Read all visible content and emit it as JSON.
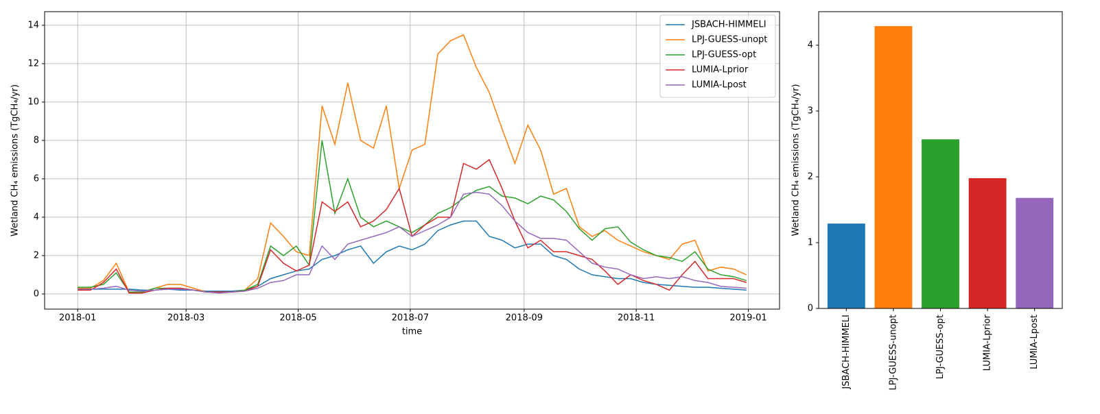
{
  "chart_data": [
    {
      "type": "line",
      "xlabel": "time",
      "ylabel": "Wetland CH₄ emissions (TgCH₄/yr)",
      "x": [
        0,
        7,
        14,
        21,
        28,
        35,
        42,
        49,
        56,
        63,
        70,
        77,
        84,
        91,
        98,
        105,
        112,
        119,
        126,
        133,
        140,
        147,
        154,
        161,
        168,
        175,
        182,
        189,
        196,
        203,
        210,
        217,
        224,
        231,
        238,
        245,
        252,
        259,
        266,
        273,
        280,
        287,
        294,
        301,
        308,
        315,
        322,
        329,
        336,
        343,
        350,
        357,
        364
      ],
      "xlim": [
        -18,
        382
      ],
      "xticks": [
        {
          "value": 0,
          "label": "2018-01"
        },
        {
          "value": 59,
          "label": "2018-03"
        },
        {
          "value": 120,
          "label": "2018-05"
        },
        {
          "value": 181,
          "label": "2018-07"
        },
        {
          "value": 243,
          "label": "2018-09"
        },
        {
          "value": 304,
          "label": "2018-11"
        },
        {
          "value": 365,
          "label": "2019-01"
        }
      ],
      "ylim": [
        -0.79,
        14.71
      ],
      "yticks": [
        0,
        2,
        4,
        6,
        8,
        10,
        12,
        14
      ],
      "grid": true,
      "legend": "upper right",
      "series": [
        {
          "name": "JSBACH-HIMMELI",
          "color": "#1f77b4",
          "values": [
            0.3,
            0.25,
            0.25,
            0.25,
            0.25,
            0.2,
            0.2,
            0.25,
            0.2,
            0.2,
            0.15,
            0.15,
            0.15,
            0.2,
            0.4,
            0.8,
            1.0,
            1.2,
            1.3,
            1.8,
            2.0,
            2.3,
            2.5,
            1.6,
            2.2,
            2.5,
            2.3,
            2.6,
            3.3,
            3.6,
            3.8,
            3.8,
            3.0,
            2.8,
            2.4,
            2.6,
            2.6,
            2.0,
            1.8,
            1.3,
            1.0,
            0.9,
            0.8,
            0.8,
            0.6,
            0.5,
            0.45,
            0.4,
            0.35,
            0.35,
            0.3,
            0.25,
            0.2
          ]
        },
        {
          "name": "LPJ-GUESS-unopt",
          "color": "#ff7f0e",
          "values": [
            0.3,
            0.3,
            0.7,
            1.6,
            0.1,
            0.1,
            0.3,
            0.5,
            0.5,
            0.3,
            0.1,
            0.1,
            0.1,
            0.2,
            0.8,
            3.7,
            3.0,
            2.2,
            2.0,
            9.8,
            7.8,
            11.0,
            8.0,
            7.6,
            9.8,
            5.5,
            7.5,
            7.8,
            12.5,
            13.2,
            13.5,
            11.8,
            10.5,
            8.6,
            6.8,
            8.8,
            7.5,
            5.2,
            5.5,
            3.5,
            3.0,
            3.3,
            2.8,
            2.5,
            2.2,
            2.0,
            1.8,
            2.6,
            2.8,
            1.2,
            1.4,
            1.3,
            1.0
          ]
        },
        {
          "name": "LPJ-GUESS-opt",
          "color": "#2ca02c",
          "values": [
            0.35,
            0.35,
            0.5,
            1.1,
            0.1,
            0.1,
            0.3,
            0.3,
            0.3,
            0.2,
            0.1,
            0.1,
            0.1,
            0.2,
            0.5,
            2.5,
            2.0,
            2.5,
            1.5,
            8.0,
            4.2,
            6.0,
            4.0,
            3.5,
            3.8,
            3.5,
            3.2,
            3.6,
            4.2,
            4.5,
            5.0,
            5.4,
            5.6,
            5.1,
            5.0,
            4.7,
            5.1,
            4.9,
            4.3,
            3.4,
            2.8,
            3.4,
            3.5,
            2.7,
            2.3,
            2.0,
            1.9,
            1.7,
            2.2,
            1.3,
            1.0,
            0.9,
            0.7
          ]
        },
        {
          "name": "LUMIA-Lprior",
          "color": "#d62728",
          "values": [
            0.2,
            0.2,
            0.6,
            1.3,
            0.05,
            0.05,
            0.2,
            0.3,
            0.3,
            0.2,
            0.1,
            0.1,
            0.1,
            0.15,
            0.4,
            2.3,
            1.6,
            1.2,
            1.5,
            4.8,
            4.3,
            4.8,
            3.5,
            3.8,
            4.4,
            5.5,
            3.0,
            3.6,
            4.0,
            4.0,
            6.8,
            6.5,
            7.0,
            5.5,
            3.8,
            2.4,
            2.8,
            2.2,
            2.2,
            2.0,
            1.8,
            1.2,
            0.5,
            1.0,
            0.7,
            0.5,
            0.2,
            1.0,
            1.7,
            0.8,
            0.8,
            0.8,
            0.6
          ]
        },
        {
          "name": "LUMIA-Lpost",
          "color": "#9467bd",
          "values": [
            0.25,
            0.25,
            0.3,
            0.4,
            0.2,
            0.15,
            0.2,
            0.25,
            0.25,
            0.2,
            0.1,
            0.05,
            0.1,
            0.15,
            0.3,
            0.6,
            0.7,
            1.0,
            1.0,
            2.5,
            1.8,
            2.6,
            2.8,
            3.0,
            3.2,
            3.5,
            3.0,
            3.3,
            3.6,
            4.0,
            5.2,
            5.3,
            5.2,
            4.6,
            3.8,
            3.2,
            2.9,
            2.9,
            2.8,
            2.2,
            1.6,
            1.4,
            1.3,
            1.0,
            0.8,
            0.9,
            0.8,
            0.9,
            0.7,
            0.6,
            0.4,
            0.35,
            0.3
          ]
        }
      ]
    },
    {
      "type": "bar",
      "ylabel": "Wetland CH₄ emissions (TgCH₄/yr)",
      "categories": [
        "JSBACH-HIMMELI",
        "LPJ-GUESS-unopt",
        "LPJ-GUESS-opt",
        "LUMIA-Lprior",
        "LUMIA-Lpost"
      ],
      "values": [
        1.29,
        4.29,
        2.57,
        1.98,
        1.68
      ],
      "colors": [
        "#1f77b4",
        "#ff7f0e",
        "#2ca02c",
        "#d62728",
        "#9467bd"
      ],
      "ylim": [
        0,
        4.51
      ],
      "yticks": [
        0,
        1,
        2,
        3,
        4
      ],
      "grid": false
    }
  ]
}
